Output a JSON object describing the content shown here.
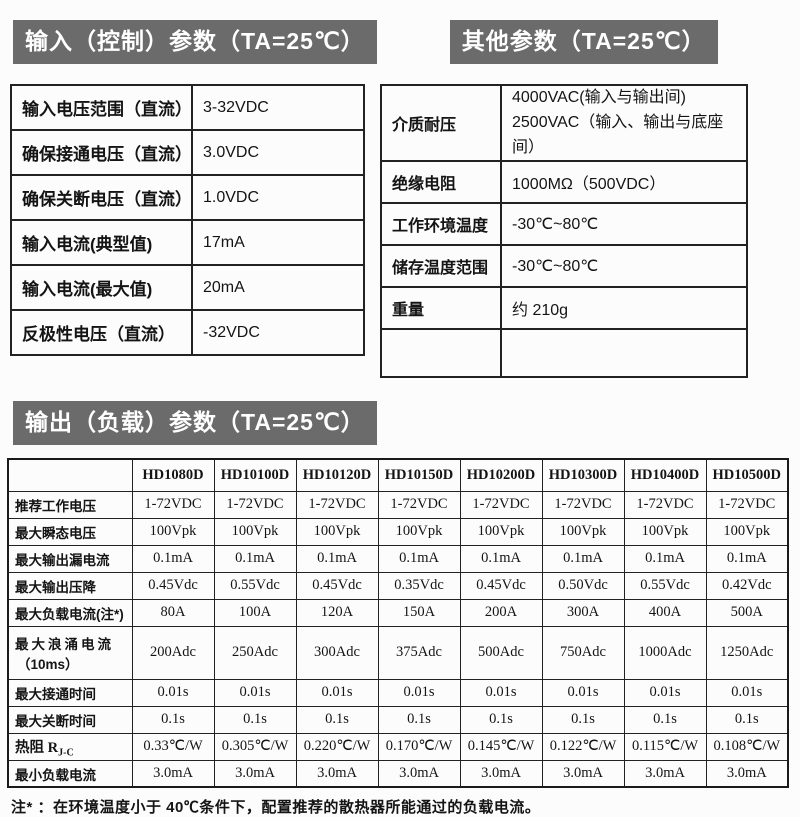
{
  "colors": {
    "section_header_bg": "#6b6b6b",
    "section_header_text": "#ffffff",
    "table_border": "#222222",
    "text": "#141414",
    "page_bg": "#fcfcfc"
  },
  "sections": {
    "input_title": "输入（控制）参数（TA=25℃）",
    "other_title": "其他参数（TA=25℃）",
    "output_title": "输出（负载）参数（TA=25℃）"
  },
  "input_table": {
    "rows": [
      {
        "label": "输入电压范围（直流）",
        "value": "3-32VDC"
      },
      {
        "label": "确保接通电压（直流）",
        "value": "3.0VDC"
      },
      {
        "label": "确保关断电压（直流）",
        "value": "1.0VDC"
      },
      {
        "label": "输入电流(典型值)",
        "value": "17mA"
      },
      {
        "label": "输入电流(最大值)",
        "value": "20mA"
      },
      {
        "label": "反极性电压（直流）",
        "value": "-32VDC"
      }
    ]
  },
  "other_table": {
    "rows": [
      {
        "label": "介质耐压",
        "value_line1": "4000VAC(输入与输出间)",
        "value_line2": "2500VAC（输入、输出与底座间）"
      },
      {
        "label": "绝缘电阻",
        "value": "1000MΩ（500VDC）"
      },
      {
        "label": "工作环境温度",
        "value": "-30℃~80℃"
      },
      {
        "label": "储存温度范围",
        "value": "-30℃~80℃"
      },
      {
        "label": "重量",
        "value": "约 210g"
      },
      {
        "label": "",
        "value": ""
      }
    ]
  },
  "output_table": {
    "models": [
      "HD1080D",
      "HD10100D",
      "HD10120D",
      "HD10150D",
      "HD10200D",
      "HD10300D",
      "HD10400D",
      "HD10500D"
    ],
    "rows": [
      {
        "label": "推荐工作电压",
        "values": [
          "1-72VDC",
          "1-72VDC",
          "1-72VDC",
          "1-72VDC",
          "1-72VDC",
          "1-72VDC",
          "1-72VDC",
          "1-72VDC"
        ]
      },
      {
        "label": "最大瞬态电压",
        "values": [
          "100Vpk",
          "100Vpk",
          "100Vpk",
          "100Vpk",
          "100Vpk",
          "100Vpk",
          "100Vpk",
          "100Vpk"
        ]
      },
      {
        "label": "最大输出漏电流",
        "values": [
          "0.1mA",
          "0.1mA",
          "0.1mA",
          "0.1mA",
          "0.1mA",
          "0.1mA",
          "0.1mA",
          "0.1mA"
        ]
      },
      {
        "label": "最大输出压降",
        "values": [
          "0.45Vdc",
          "0.55Vdc",
          "0.45Vdc",
          "0.35Vdc",
          "0.45Vdc",
          "0.50Vdc",
          "0.55Vdc",
          "0.42Vdc"
        ]
      },
      {
        "label": "最大负载电流(注*)",
        "values": [
          "80A",
          "100A",
          "120A",
          "150A",
          "200A",
          "300A",
          "400A",
          "500A"
        ]
      },
      {
        "label": "最大浪涌电流",
        "label_line2": "（10ms）",
        "values": [
          "200Adc",
          "250Adc",
          "300Adc",
          "375Adc",
          "500Adc",
          "750Adc",
          "1000Adc",
          "1250Adc"
        ]
      },
      {
        "label": "最大接通时间",
        "values": [
          "0.01s",
          "0.01s",
          "0.01s",
          "0.01s",
          "0.01s",
          "0.01s",
          "0.01s",
          "0.01s"
        ]
      },
      {
        "label": "最大关断时间",
        "values": [
          "0.1s",
          "0.1s",
          "0.1s",
          "0.1s",
          "0.1s",
          "0.1s",
          "0.1s",
          "0.1s"
        ]
      },
      {
        "label": "热阻 R",
        "label_sub": "J-C",
        "values": [
          "0.33℃/W",
          "0.305℃/W",
          "0.220℃/W",
          "0.170℃/W",
          "0.145℃/W",
          "0.122℃/W",
          "0.115℃/W",
          "0.108℃/W"
        ]
      },
      {
        "label": "最小负载电流",
        "values": [
          "3.0mA",
          "3.0mA",
          "3.0mA",
          "3.0mA",
          "3.0mA",
          "3.0mA",
          "3.0mA",
          "3.0mA"
        ]
      }
    ]
  },
  "footnote": "注* ：在环境温度小于 40℃条件下，配置推荐的散热器所能通过的负载电流。"
}
